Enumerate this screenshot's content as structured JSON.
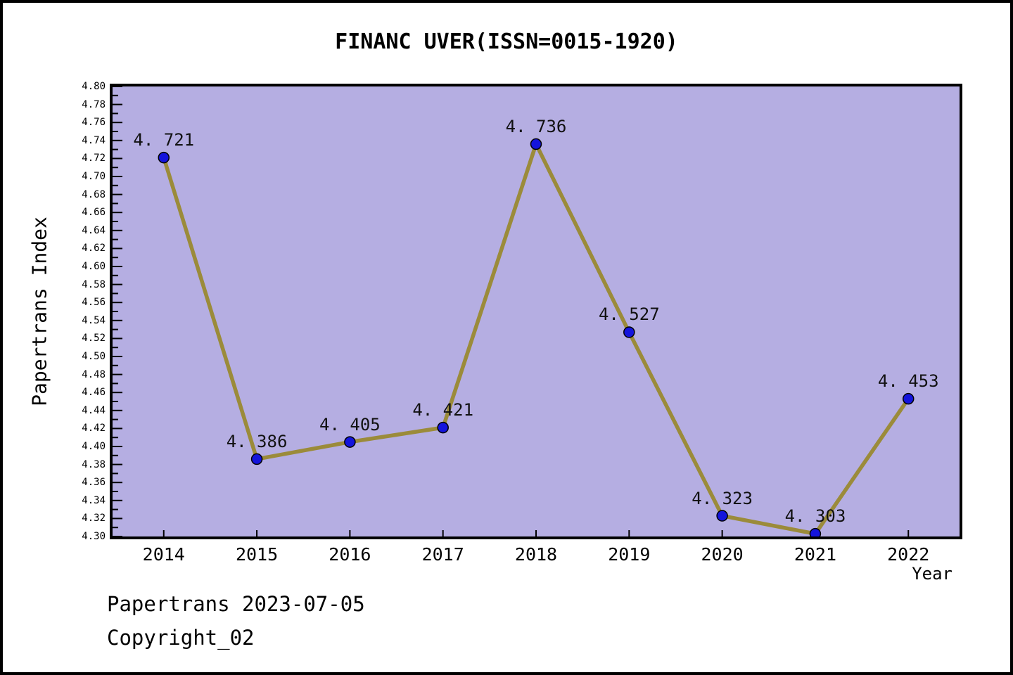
{
  "page": {
    "title": "FINANC UVER(ISSN=0015-1920)"
  },
  "footer": {
    "line1": "Papertrans 2023-07-05",
    "line2": "Copyright_02"
  },
  "chart_data": {
    "type": "line",
    "title": "FINANC UVER(ISSN=0015-1920)",
    "xlabel": "Year",
    "ylabel": "Papertrans Index",
    "x": [
      2014,
      2015,
      2016,
      2017,
      2018,
      2019,
      2020,
      2021,
      2022
    ],
    "values": [
      4.721,
      4.386,
      4.405,
      4.421,
      4.736,
      4.527,
      4.323,
      4.303,
      4.453
    ],
    "point_labels": [
      "4. 721",
      "4. 386",
      "4. 405",
      "4. 421",
      "4. 736",
      "4. 527",
      "4. 323",
      "4. 303",
      "4. 453"
    ],
    "xlim": [
      2013.45,
      2022.55
    ],
    "ylim": [
      4.3,
      4.8
    ],
    "y_major_step": 0.02,
    "y_minor_step": 0.01,
    "grid": false,
    "legend": "none",
    "colors": {
      "plot_bg": "#b5aee2",
      "line": "#9b8b3a",
      "marker_fill": "#1414dc",
      "marker_edge": "#000000",
      "axis": "#000000",
      "text": "#000000",
      "page_bg": "#ffffff"
    }
  }
}
